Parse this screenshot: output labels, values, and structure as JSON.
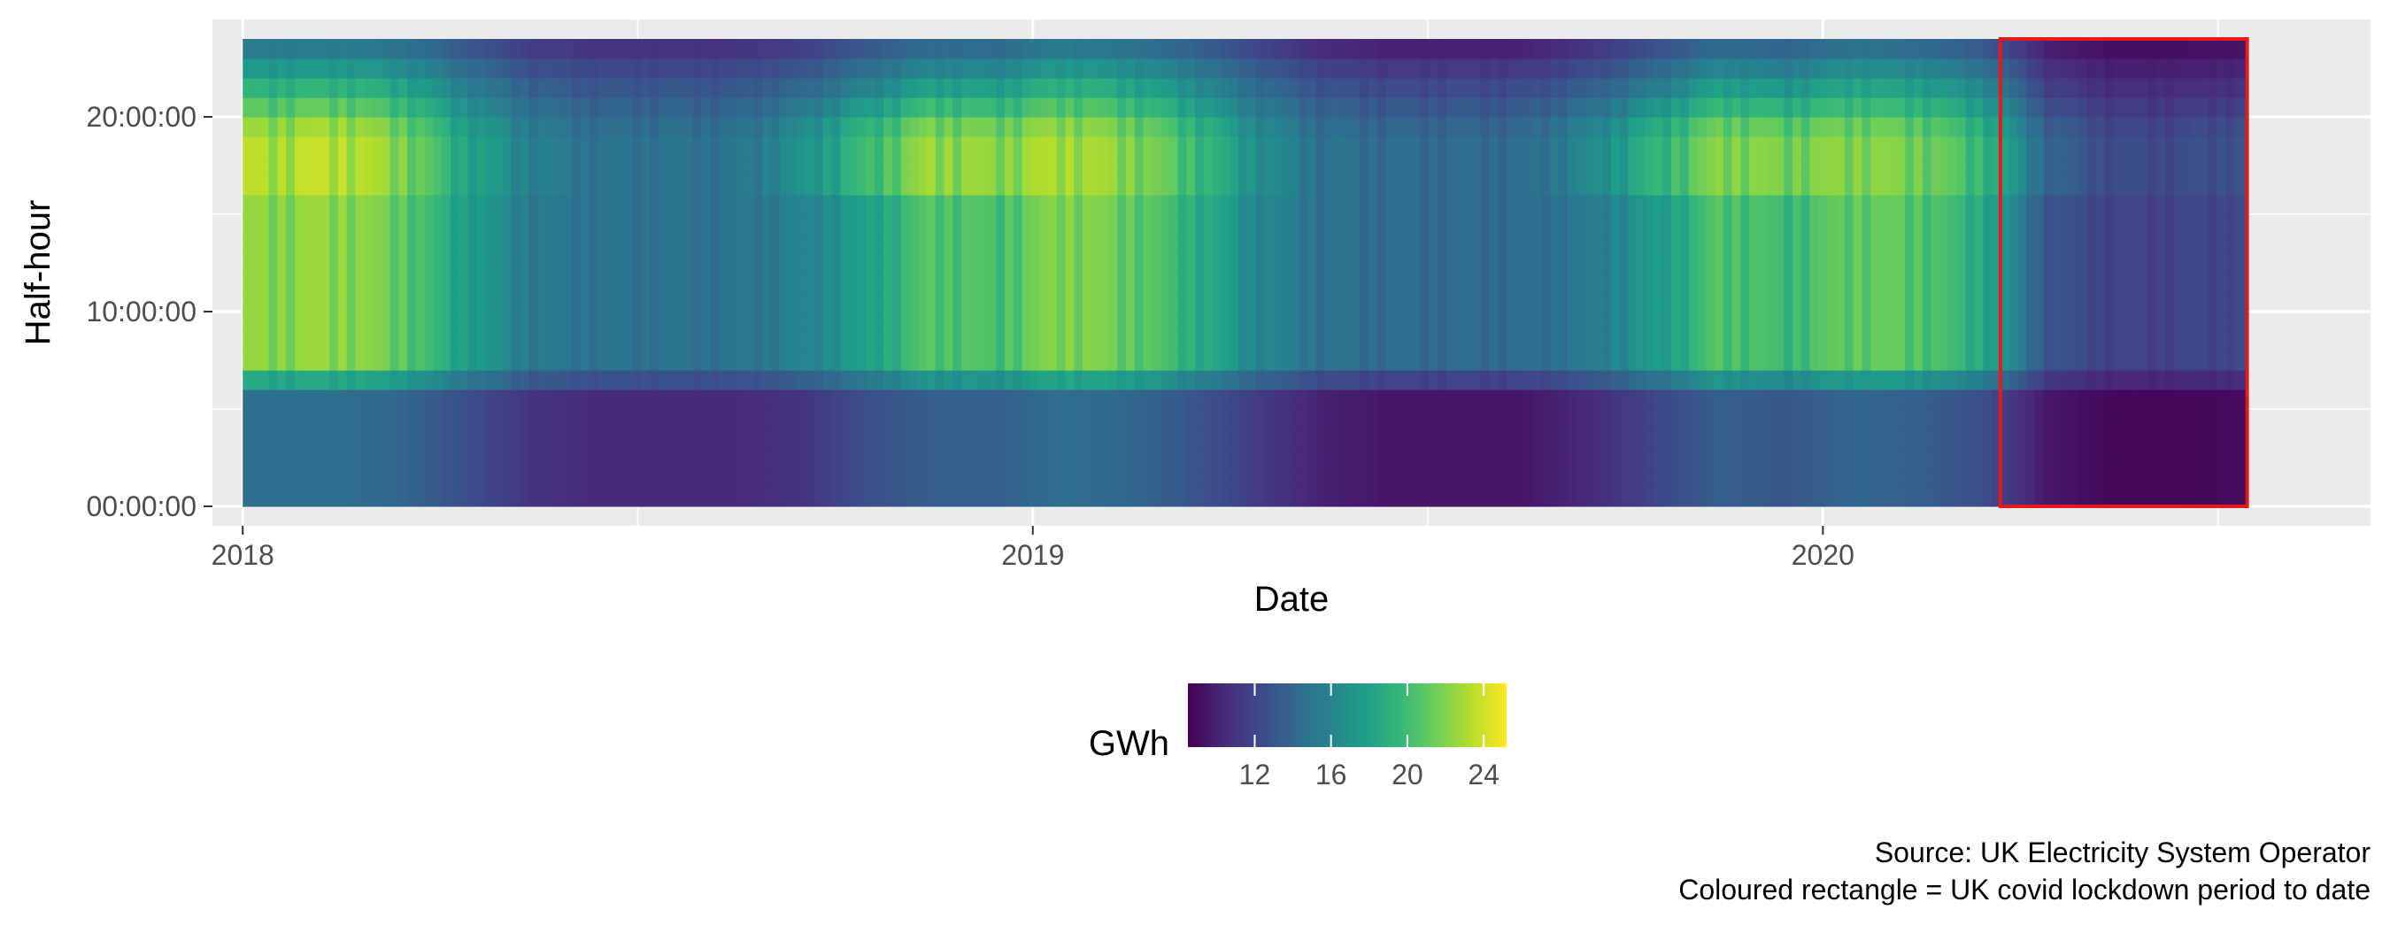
{
  "chart_data": {
    "type": "heatmap",
    "title": "",
    "xlabel": "Date",
    "ylabel": "Half-hour",
    "x_ticks": [
      {
        "value": "2018-01-01",
        "label": "2018"
      },
      {
        "value": "2019-01-01",
        "label": "2019"
      },
      {
        "value": "2020-01-01",
        "label": "2020"
      }
    ],
    "y_ticks": [
      {
        "value": "00:00:00",
        "label": "00:00:00"
      },
      {
        "value": "10:00:00",
        "label": "10:00:00"
      },
      {
        "value": "20:00:00",
        "label": "20:00:00"
      }
    ],
    "xlim": [
      "2017-12-18",
      "2020-09-10"
    ],
    "ylim": [
      "-01:00:00",
      "25:00:00"
    ],
    "data_range": {
      "x": [
        "2018-01-01",
        "2020-07-15"
      ],
      "y": [
        "00:00:00",
        "23:30:00"
      ]
    },
    "grid": true,
    "color_scale": {
      "name": "viridis",
      "title": "GWh",
      "min": 8.5,
      "max": 25.2,
      "breaks": [
        12,
        16,
        20,
        24
      ],
      "stops": [
        "#440154",
        "#482878",
        "#3e4989",
        "#31688e",
        "#26828e",
        "#1f9e89",
        "#35b779",
        "#6ece58",
        "#b5de2b",
        "#fde725"
      ]
    },
    "annotation": {
      "type": "rect",
      "x": [
        "2020-03-23",
        "2020-07-15"
      ],
      "y": [
        "00:00:00",
        "23:30:00"
      ],
      "color": "#e41a1c"
    },
    "legend_position": "bottom",
    "seasonal_demand_gwh": [
      {
        "month": "2018-01",
        "night": 14.5,
        "day": 22.5,
        "evening": 23.5
      },
      {
        "month": "2018-02",
        "night": 14.5,
        "day": 22.8,
        "evening": 24.0
      },
      {
        "month": "2018-03",
        "night": 14.0,
        "day": 21.5,
        "evening": 22.5
      },
      {
        "month": "2018-04",
        "night": 12.5,
        "day": 18.0,
        "evening": 18.5
      },
      {
        "month": "2018-05",
        "night": 11.0,
        "day": 15.5,
        "evening": 16.0
      },
      {
        "month": "2018-06",
        "night": 10.5,
        "day": 15.0,
        "evening": 15.0
      },
      {
        "month": "2018-07",
        "night": 10.5,
        "day": 15.0,
        "evening": 15.0
      },
      {
        "month": "2018-08",
        "night": 10.5,
        "day": 15.0,
        "evening": 15.0
      },
      {
        "month": "2018-09",
        "night": 11.0,
        "day": 16.0,
        "evening": 17.0
      },
      {
        "month": "2018-10",
        "night": 12.5,
        "day": 18.0,
        "evening": 20.0
      },
      {
        "month": "2018-11",
        "night": 13.5,
        "day": 21.0,
        "evening": 23.0
      },
      {
        "month": "2018-12",
        "night": 13.5,
        "day": 20.5,
        "evening": 22.5
      },
      {
        "month": "2019-01",
        "night": 14.5,
        "day": 22.5,
        "evening": 23.5
      },
      {
        "month": "2019-02",
        "night": 14.0,
        "day": 21.5,
        "evening": 22.5
      },
      {
        "month": "2019-03",
        "night": 13.0,
        "day": 19.5,
        "evening": 20.5
      },
      {
        "month": "2019-04",
        "night": 11.5,
        "day": 16.5,
        "evening": 17.0
      },
      {
        "month": "2019-05",
        "night": 10.0,
        "day": 15.0,
        "evening": 15.0
      },
      {
        "month": "2019-06",
        "night": 9.5,
        "day": 14.5,
        "evening": 14.5
      },
      {
        "month": "2019-07",
        "night": 9.5,
        "day": 14.5,
        "evening": 14.5
      },
      {
        "month": "2019-08",
        "night": 9.5,
        "day": 14.5,
        "evening": 14.5
      },
      {
        "month": "2019-09",
        "night": 10.5,
        "day": 15.5,
        "evening": 16.5
      },
      {
        "month": "2019-10",
        "night": 12.0,
        "day": 17.5,
        "evening": 19.5
      },
      {
        "month": "2019-11",
        "night": 13.5,
        "day": 21.0,
        "evening": 22.5
      },
      {
        "month": "2019-12",
        "night": 13.0,
        "day": 20.0,
        "evening": 22.0
      },
      {
        "month": "2020-01",
        "night": 14.0,
        "day": 21.5,
        "evening": 22.5
      },
      {
        "month": "2020-02",
        "night": 13.5,
        "day": 21.0,
        "evening": 22.0
      },
      {
        "month": "2020-03",
        "night": 12.5,
        "day": 19.0,
        "evening": 20.0
      },
      {
        "month": "2020-04",
        "night": 9.5,
        "day": 13.0,
        "evening": 14.0
      },
      {
        "month": "2020-05",
        "night": 8.8,
        "day": 12.0,
        "evening": 12.5
      },
      {
        "month": "2020-06",
        "night": 8.8,
        "day": 12.0,
        "evening": 12.5
      },
      {
        "month": "2020-07",
        "night": 9.0,
        "day": 12.5,
        "evening": 13.0
      }
    ]
  },
  "caption": [
    "Source: UK Electricity System Operator",
    "Coloured rectangle = UK covid lockdown period to date"
  ]
}
